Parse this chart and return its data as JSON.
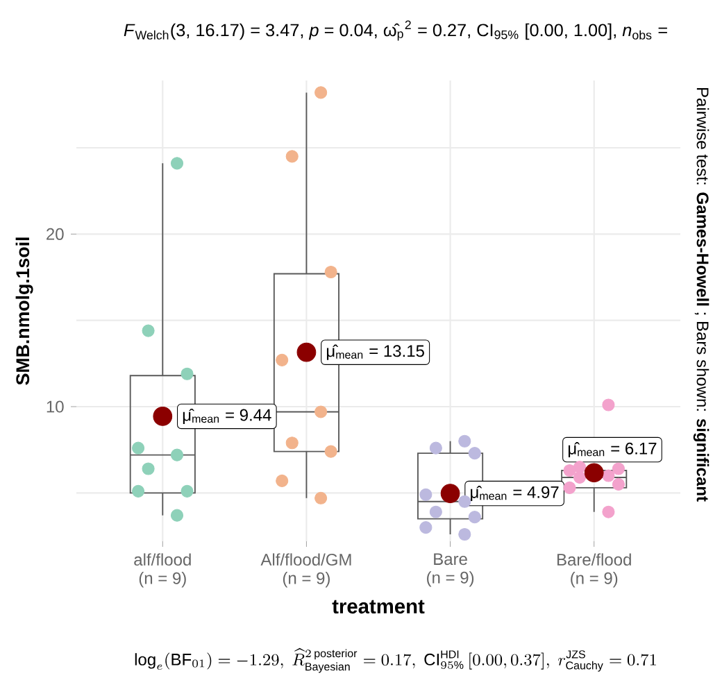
{
  "chart_data": {
    "type": "box",
    "title": "*F*$_{Welch}$(3, 16.17) = 3.47, *p* = 0.04, ω̂$_{p}$$^{2}$ = 0.27, CI$_{95%}$ [0.00, 1.00], *n*$_{obs}$ =",
    "xlabel": "treatment",
    "ylabel": "SMB.nmolg.1soil",
    "categories": [
      "alf/flood\n(n = 9)",
      "Alf/flood/GM\n(n = 9)",
      "Bare\n(n = 9)",
      "Bare/flood\n(n = 9)"
    ],
    "boxes": [
      {
        "low": 3.7,
        "q1": 5.0,
        "median": 7.2,
        "q3": 11.8,
        "high": 24.1
      },
      {
        "low": 4.7,
        "q1": 7.4,
        "median": 9.7,
        "q3": 17.7,
        "high": 28.2
      },
      {
        "low": 2.6,
        "q1": 3.5,
        "median": 4.5,
        "q3": 7.3,
        "high": 8.0
      },
      {
        "low": 3.9,
        "q1": 5.3,
        "median": 5.9,
        "q3": 6.3,
        "high": 6.5
      }
    ],
    "series": [
      {
        "type": "scatter",
        "color": "#8ed1b9",
        "x": [
          "alf/flood\n(n = 9)",
          "alf/flood\n(n = 9)",
          "alf/flood\n(n = 9)",
          "alf/flood\n(n = 9)",
          "alf/flood\n(n = 9)",
          "alf/flood\n(n = 9)",
          "alf/flood\n(n = 9)",
          "alf/flood\n(n = 9)",
          "alf/flood\n(n = 9)"
        ],
        "values": [
          24.1,
          14.4,
          11.9,
          7.6,
          7.2,
          6.4,
          5.1,
          5.1,
          3.7
        ]
      },
      {
        "type": "scatter",
        "color": "#f2b38c",
        "x": [
          "Alf/flood/GM\n(n = 9)",
          "Alf/flood/GM\n(n = 9)",
          "Alf/flood/GM\n(n = 9)",
          "Alf/flood/GM\n(n = 9)",
          "Alf/flood/GM\n(n = 9)",
          "Alf/flood/GM\n(n = 9)",
          "Alf/flood/GM\n(n = 9)",
          "Alf/flood/GM\n(n = 9)",
          "Alf/flood/GM\n(n = 9)"
        ],
        "values": [
          28.2,
          24.5,
          17.8,
          12.7,
          9.7,
          7.9,
          7.4,
          5.7,
          4.7
        ]
      },
      {
        "type": "scatter",
        "color": "#bcb9df",
        "x": [
          "Bare\n(n = 9)",
          "Bare\n(n = 9)",
          "Bare\n(n = 9)",
          "Bare\n(n = 9)",
          "Bare\n(n = 9)",
          "Bare\n(n = 9)",
          "Bare\n(n = 9)",
          "Bare\n(n = 9)",
          "Bare\n(n = 9)"
        ],
        "values": [
          8.0,
          7.6,
          7.3,
          4.9,
          4.5,
          3.9,
          3.6,
          3.0,
          2.6
        ]
      },
      {
        "type": "scatter",
        "color": "#f3a2cc",
        "x": [
          "Bare/flood\n(n = 9)",
          "Bare/flood\n(n = 9)",
          "Bare/flood\n(n = 9)",
          "Bare/flood\n(n = 9)",
          "Bare/flood\n(n = 9)",
          "Bare/flood\n(n = 9)",
          "Bare/flood\n(n = 9)",
          "Bare/flood\n(n = 9)",
          "Bare/flood\n(n = 9)"
        ],
        "values": [
          10.1,
          6.5,
          6.4,
          6.3,
          6.0,
          5.9,
          5.5,
          5.3,
          3.9
        ]
      },
      {
        "type": "scatter",
        "color": "#8b0000",
        "x": [
          "alf/flood\n(n = 9)",
          "Alf/flood/GM\n(n = 9)",
          "Bare\n(n = 9)",
          "Bare/flood\n(n = 9)"
        ],
        "values": [
          9.44,
          13.15,
          4.97,
          6.17
        ]
      }
    ],
    "annotations": [
      {
        "text": "μ̂$_{mean}$ = 9.44",
        "x": "alf/flood\n(n = 9)",
        "y": 9.44
      },
      {
        "text": "μ̂$_{mean}$ = 13.15",
        "x": "Alf/flood/GM\n(n = 9)",
        "y": 13.15
      },
      {
        "text": "μ̂$_{mean}$ = 4.97",
        "x": "Bare\n(n = 9)",
        "y": 4.97
      },
      {
        "text": "μ̂$_{mean}$ = 6.17",
        "x": "Bare/flood\n(n = 9)",
        "y": 6.17
      },
      "\\log_{e}(\\mathrm{BF}_{01}) = -1.29,\\ \\widehat{R}^{2\\,\\mathrm{posterior}}_{\\mathrm{Bayesian}} = 0.17,\\ \\mathrm{CI}^{\\mathrm{HDI}}_{95\\%}\\,[0.00, 0.37],\\ r^{\\mathrm{JZS}}_{\\mathrm{Cauchy}} = 0.71",
      "Pairwise test: **Games-Howell** ; Bars shown: **significant**"
    ],
    "ylim": [
      2.2,
      28.9
    ],
    "yticks": [
      {
        "value": 5,
        "label": null
      },
      10,
      {
        "value": 15,
        "label": null
      },
      20,
      {
        "value": 25,
        "label": null
      }
    ],
    "grid": true
  }
}
